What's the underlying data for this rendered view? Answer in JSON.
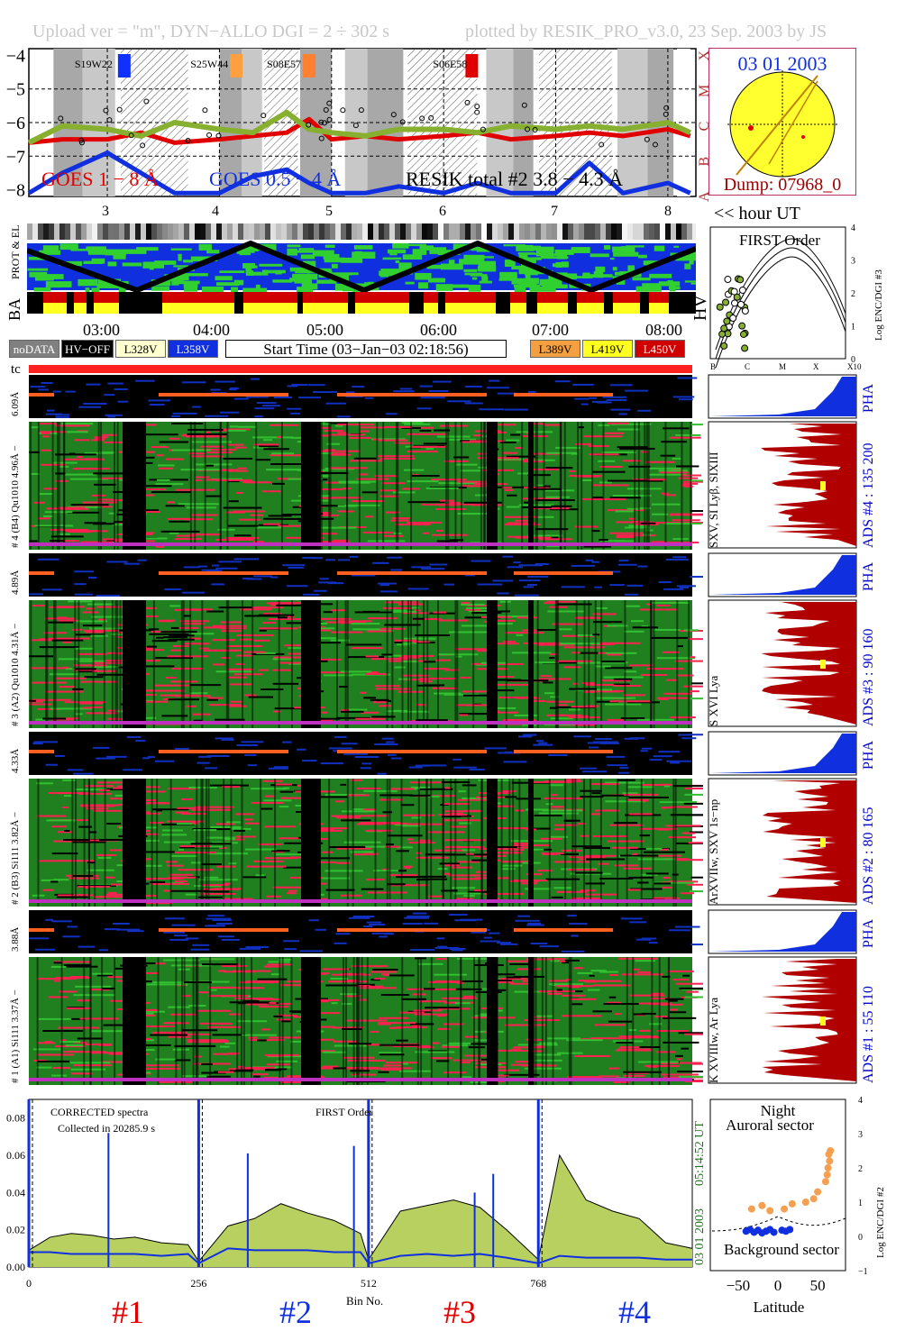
{
  "header": {
    "upload": "Upload ver = \"m\", DYN−ALLO DGI =   2 ÷ 302 s",
    "plotted": "plotted by RESIK_PRO_v3.0, 23 Sep. 2003 by JS"
  },
  "goes": {
    "y_ticks": [
      "−4",
      "−5",
      "−6",
      "−7",
      "−8"
    ],
    "class_labels": [
      "X",
      "M",
      "C",
      "B",
      "A"
    ],
    "legend_goes1": "GOES 1 − 8 Å",
    "legend_goes2": "GOES 0.5 − 4 Å",
    "legend_resik": "RESIK total #2  3.8 − 4.3 Å",
    "regions": [
      {
        "label": "S19W22",
        "color": "#1030ff"
      },
      {
        "label": "S25W44",
        "color": "#ffa040"
      },
      {
        "label": "S08E57",
        "color": "#ff8030"
      },
      {
        "label": "S06E58",
        "color": "#e00000"
      }
    ],
    "hour_ticks": [
      "3",
      "4",
      "5",
      "6",
      "7",
      "8"
    ],
    "hour_unit": "<< hour UT"
  },
  "sun": {
    "date": "03 01 2003",
    "dump": "Dump: 07968_0"
  },
  "orbit": {
    "label_prot_el": "PROT & EL",
    "label_ba": "BA",
    "label_hv": "HV",
    "time_ticks": [
      "03:00",
      "04:00",
      "05:00",
      "06:00",
      "07:00",
      "08:00"
    ],
    "legend": {
      "nodata": "noDATA",
      "hvoff": "HV−OFF",
      "l328": "L328V",
      "l358": "L358V",
      "start": "Start Time (03−Jan−03 02:18:56)",
      "l389": "L389V",
      "l419": "L419V",
      "l450": "L450V"
    }
  },
  "first_order": {
    "title": "FIRST Order",
    "ylabel": "Log ENC/DGI #3",
    "y_ticks": [
      "4",
      "3",
      "2",
      "1",
      "0"
    ],
    "x_ticks": [
      "B",
      "C",
      "M",
      "X",
      "X10"
    ]
  },
  "tc": "tc",
  "channels": [
    {
      "pha_label": "6.09Å",
      "main_label": "# 4 (B4) Qu1010 4.96Å − ",
      "pha": "PHA",
      "ads": "ADS #4 :  135 200",
      "line_id": "SXV, SI Lyβ, SIXIII"
    },
    {
      "pha_label": "4.89Å",
      "main_label": "# 3 (A2) Qu1010 4.31Å − ",
      "pha": "PHA",
      "ads": "ADS #3 :  90 160",
      "line_id": "S XVI Lya"
    },
    {
      "pha_label": "4.33Å",
      "main_label": "# 2 (B3) Si111 3.82Å − ",
      "pha": "PHA",
      "ads": "ADS #2 :  80 165",
      "line_id": "ArXVIIw, SXV 1s−np"
    },
    {
      "pha_label": "3.88Å",
      "main_label": "# 1 (A1) Si111 3.37Å − ",
      "pha": "PHA",
      "ads": "ADS #1 :  55 110",
      "line_id": "K XVIIIw, Ar Lya"
    }
  ],
  "spectrum": {
    "title1": "CORRECTED spectra",
    "title2": "Collected in 20285.9 s",
    "title3": "FIRST Order",
    "xlabel": "Bin No.",
    "date_label": "03 01 2003",
    "time_label": "05:14:52 UT",
    "y_ticks": [
      "0.08",
      "0.06",
      "0.04",
      "0.02",
      "0.00"
    ],
    "x_ticks": [
      "0",
      "256",
      "512",
      "768"
    ],
    "segment_labels": [
      "#1",
      "#2",
      "#3",
      "#4"
    ]
  },
  "latitude_panel": {
    "top1": "Night",
    "top2": "Auroral sector",
    "bottom": "Background sector",
    "xlabel": "Latitude",
    "ylabel": "Log ENC/DGI #2",
    "x_ticks": [
      "−50",
      "0",
      "50"
    ],
    "y_ticks": [
      "4",
      "3",
      "2",
      "1",
      "0",
      "−1"
    ]
  },
  "chart_data": [
    {
      "type": "line",
      "title": "",
      "ylabel": "",
      "ylim": [
        -8.2,
        -3.8
      ],
      "x": [
        2.3,
        2.6,
        3.0,
        3.3,
        3.6,
        4.0,
        4.3,
        4.6,
        4.8,
        5.0,
        5.3,
        5.6,
        6.0,
        6.3,
        6.6,
        7.0,
        7.3,
        7.6,
        8.0,
        8.2
      ],
      "series": [
        {
          "name": "GOES 1 − 8 Å",
          "values": [
            -6.6,
            -6.5,
            -6.5,
            -6.3,
            -6.6,
            -6.5,
            -6.4,
            -6.3,
            -5.9,
            -6.5,
            -6.4,
            -6.5,
            -6.4,
            -6.3,
            -6.5,
            -6.4,
            -6.3,
            -6.4,
            -6.2,
            -6.4
          ]
        },
        {
          "name": "GOES 0.5 − 4 Å",
          "values": [
            -8.1,
            -7.5,
            -6.9,
            -7.5,
            -8.1,
            -8.1,
            -7.6,
            -7.4,
            -7.8,
            -8.1,
            -8.1,
            -7.9,
            -8.1,
            -7.8,
            -8.1,
            -8.1,
            -7.2,
            -8.1,
            -7.8,
            -8.1
          ]
        },
        {
          "name": "RESIK total #2  3.8 − 4.3 Å",
          "values": [
            -6.6,
            -6.1,
            -6.2,
            -6.4,
            -6.0,
            -6.2,
            -6.3,
            -5.7,
            -6.2,
            -6.3,
            -6.4,
            -6.2,
            -6.2,
            -6.3,
            -6.1,
            -6.2,
            -6.1,
            -6.2,
            -6.0,
            -6.3
          ]
        }
      ]
    },
    {
      "type": "line",
      "title": "FIRST Order",
      "xlabel": "Bin No.",
      "ylim": [
        0,
        0.09
      ],
      "x": [
        0,
        32,
        64,
        96,
        128,
        160,
        200,
        240,
        256,
        300,
        340,
        380,
        420,
        460,
        500,
        512,
        560,
        600,
        640,
        680,
        720,
        768,
        800,
        840,
        880,
        920,
        960,
        1000
      ],
      "series": [
        {
          "name": "CORRECTED spectra",
          "values": [
            0.009,
            0.016,
            0.018,
            0.017,
            0.015,
            0.016,
            0.013,
            0.012,
            0.003,
            0.022,
            0.026,
            0.034,
            0.029,
            0.025,
            0.018,
            0.004,
            0.03,
            0.033,
            0.036,
            0.032,
            0.02,
            0.004,
            0.06,
            0.036,
            0.03,
            0.026,
            0.013,
            0.01
          ]
        },
        {
          "name": "background",
          "values": [
            0.008,
            0.008,
            0.007,
            0.007,
            0.007,
            0.007,
            0.006,
            0.007,
            0.002,
            0.01,
            0.009,
            0.009,
            0.009,
            0.008,
            0.008,
            0.002,
            0.006,
            0.007,
            0.006,
            0.007,
            0.005,
            0.002,
            0.006,
            0.005,
            0.005,
            0.005,
            0.004,
            0.004
          ]
        }
      ]
    },
    {
      "type": "scatter",
      "xlabel": "Latitude",
      "ylabel": "Log ENC/DGI #2",
      "xlim": [
        -85,
        85
      ],
      "ylim": [
        -1,
        4
      ],
      "series": [
        {
          "name": "Auroral",
          "color": "#f5a050",
          "x": [
            -33,
            -20,
            -10,
            8,
            18,
            35,
            45,
            50,
            60,
            62,
            63,
            65,
            64,
            66
          ],
          "y": [
            0.8,
            0.9,
            0.75,
            0.8,
            0.95,
            1.0,
            1.1,
            1.3,
            1.6,
            1.8,
            2.0,
            2.2,
            2.4,
            2.5
          ]
        },
        {
          "name": "Background",
          "color": "#1030e0",
          "x": [
            -40,
            -35,
            -30,
            -25,
            -20,
            -15,
            -10,
            -5,
            5,
            10,
            15
          ],
          "y": [
            0.15,
            0.2,
            0.12,
            0.18,
            0.1,
            0.15,
            0.2,
            0.12,
            0.18,
            0.15,
            0.2
          ]
        }
      ]
    }
  ]
}
